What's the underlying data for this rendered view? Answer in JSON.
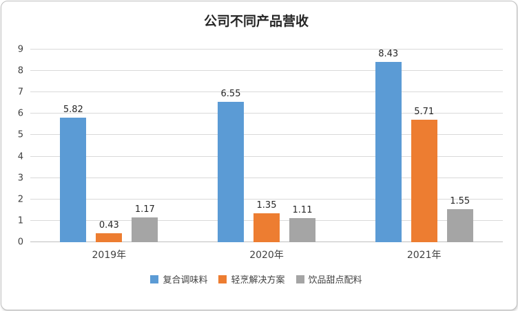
{
  "chart_data": {
    "type": "bar",
    "title": "公司不同产品营收",
    "categories": [
      "2019年",
      "2020年",
      "2021年"
    ],
    "series": [
      {
        "name": "复合调味料",
        "color": "#5b9bd5",
        "values": [
          5.82,
          6.55,
          8.43
        ]
      },
      {
        "name": "轻烹解决方案",
        "color": "#ed7d31",
        "values": [
          0.43,
          1.35,
          5.71
        ]
      },
      {
        "name": "饮品甜点配料",
        "color": "#a5a5a5",
        "values": [
          1.17,
          1.11,
          1.55
        ]
      }
    ],
    "ylim": [
      0,
      9
    ],
    "y_ticks": [
      0,
      1,
      2,
      3,
      4,
      5,
      6,
      7,
      8,
      9
    ],
    "grid": true,
    "legend_position": "bottom",
    "data_labels": true
  }
}
